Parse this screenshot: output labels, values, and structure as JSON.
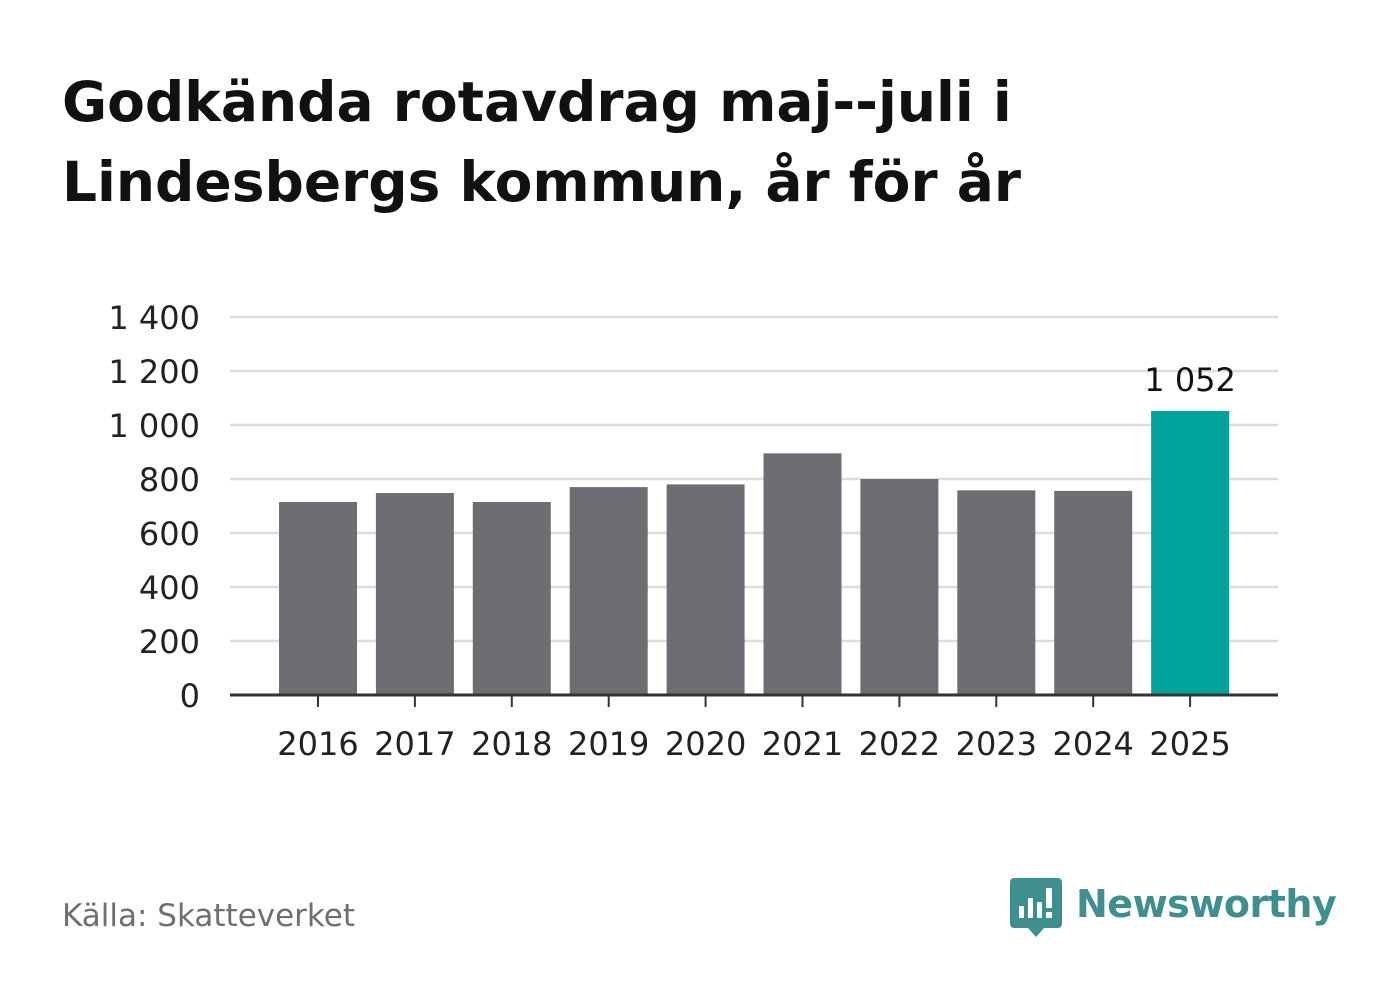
{
  "title_lines": [
    "Godkända rotavdrag maj--juli i",
    "Lindesbergs kommun, år för år"
  ],
  "source": "Källa: Skatteverket",
  "brand": {
    "name": "Newsworthy",
    "icon": "newsworthy-logo-icon",
    "color": "#3f8f8f"
  },
  "colors": {
    "bar": "#6e6d73",
    "highlight": "#00a39a",
    "grid": "#dddddd",
    "axis": "#333333",
    "text": "#222222"
  },
  "chart_data": {
    "type": "bar",
    "categories": [
      "2016",
      "2017",
      "2018",
      "2019",
      "2020",
      "2021",
      "2022",
      "2023",
      "2024",
      "2025"
    ],
    "values": [
      715,
      748,
      715,
      770,
      780,
      895,
      800,
      758,
      756,
      1052
    ],
    "highlight_index": 9,
    "data_labels": [
      {
        "index": 9,
        "text": "1 052"
      }
    ],
    "ylim": [
      0,
      1400
    ],
    "yticks": [
      0,
      200,
      400,
      600,
      800,
      1000,
      1200,
      1400
    ],
    "ytick_labels": [
      "0",
      "200",
      "400",
      "600",
      "800",
      "1 000",
      "1 200",
      "1 400"
    ],
    "grid": true,
    "legend": "none"
  }
}
